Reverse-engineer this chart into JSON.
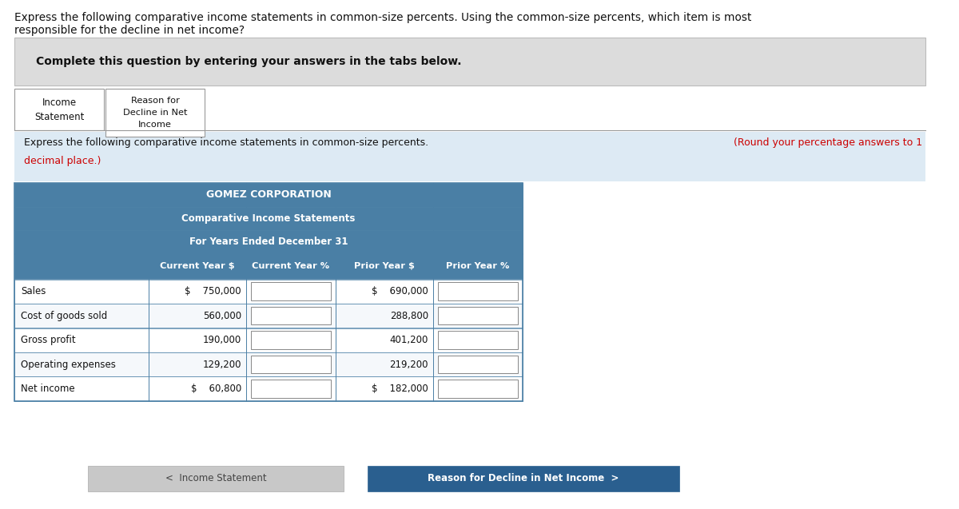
{
  "title_text": "Express the following comparative income statements in common-size percents. Using the common-size percents, which item is most\nresponsible for the decline in net income?",
  "complete_text": "Complete this question by entering your answers in the tabs below.",
  "tab1_line1": "Income",
  "tab1_line2": "Statement",
  "tab2_line1": "Reason for",
  "tab2_line2": "Decline in Net",
  "tab2_line3": "Income",
  "instruction_black": "Express the following comparative income statements in common-size percents.",
  "instruction_red1": "(Round your percentage answers to 1",
  "instruction_red2": "decimal place.)",
  "corp_title": "GOMEZ CORPORATION",
  "corp_subtitle": "Comparative Income Statements",
  "corp_period": "For Years Ended December 31",
  "col_headers": [
    "Current Year $",
    "Current Year %",
    "Prior Year $",
    "Prior Year %"
  ],
  "row_labels": [
    "Sales",
    "Cost of goods sold",
    "Gross profit",
    "Operating expenses",
    "Net income"
  ],
  "current_dollar": [
    "$    750,000",
    "560,000",
    "190,000",
    "129,200",
    "$    60,800"
  ],
  "prior_dollar": [
    "$    690,000",
    "288,800",
    "401,200",
    "219,200",
    "$    182,000"
  ],
  "dollar_sign_rows": [
    0,
    4
  ],
  "btn1_text": "<  Income Statement",
  "btn2_text": "Reason for Decline in Net Income  >",
  "header_bg": "#4a7fa5",
  "table_border": "#4a7fa5",
  "gray_box_bg": "#dcdcdc",
  "instruction_bg": "#ddeaf4",
  "btn_inactive_bg": "#c8c8c8",
  "btn_active_bg": "#2a5f8f",
  "red_color": "#cc0000"
}
